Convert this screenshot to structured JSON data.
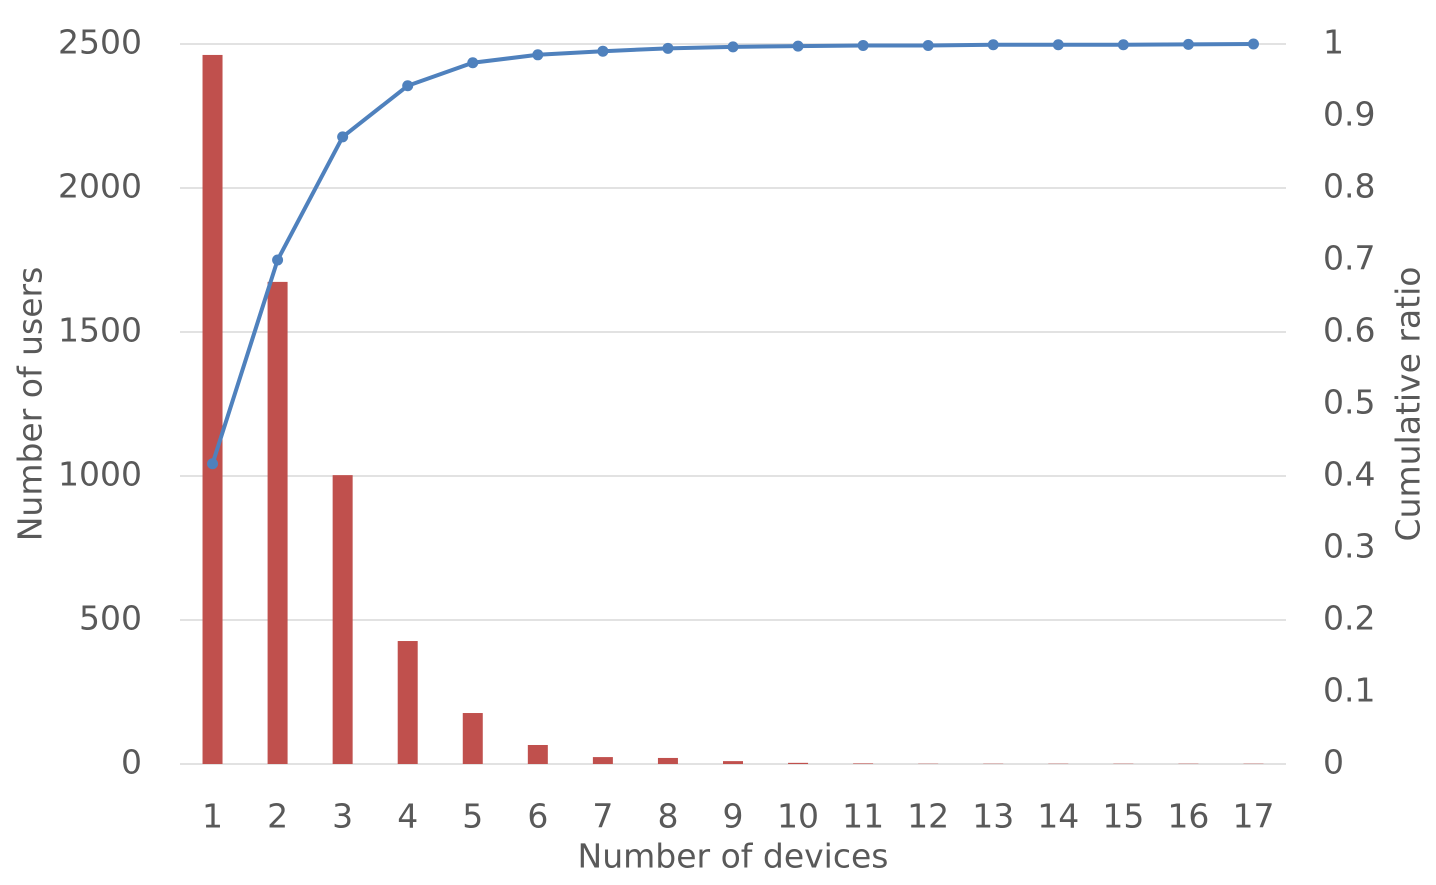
{
  "chart_data": {
    "type": "bar_line",
    "x_label": "Number of devices",
    "y_label": "Number of users",
    "y2_label": "Cumulative ratio",
    "categories": [
      "1",
      "2",
      "3",
      "4",
      "5",
      "6",
      "7",
      "8",
      "9",
      "10",
      "11",
      "12",
      "13",
      "14",
      "15",
      "16",
      "17"
    ],
    "series": [
      {
        "name": "Number of users",
        "type": "bar",
        "color": "#c0504d",
        "values": [
          2462,
          1674,
          1003,
          427,
          177,
          66,
          24,
          21,
          10,
          4,
          2,
          1,
          1,
          1,
          1,
          1,
          1
        ]
      },
      {
        "name": "Cumulative ratio",
        "type": "line",
        "axis": "y2",
        "color": "#4f81bd",
        "values": [
          0.417,
          0.7,
          0.871,
          0.942,
          0.974,
          0.985,
          0.99,
          0.994,
          0.996,
          0.997,
          0.998,
          0.998,
          0.999,
          0.999,
          0.999,
          0.9995,
          1
        ]
      }
    ],
    "ylim": [
      0,
      2500
    ],
    "yticks": [
      0,
      500,
      1000,
      1500,
      2000,
      2500
    ],
    "y2lim": [
      0,
      1
    ],
    "y2ticks": [
      0,
      0.1,
      0.2,
      0.3,
      0.4,
      0.5,
      0.6,
      0.7,
      0.8,
      0.9,
      1
    ],
    "grid": true
  }
}
